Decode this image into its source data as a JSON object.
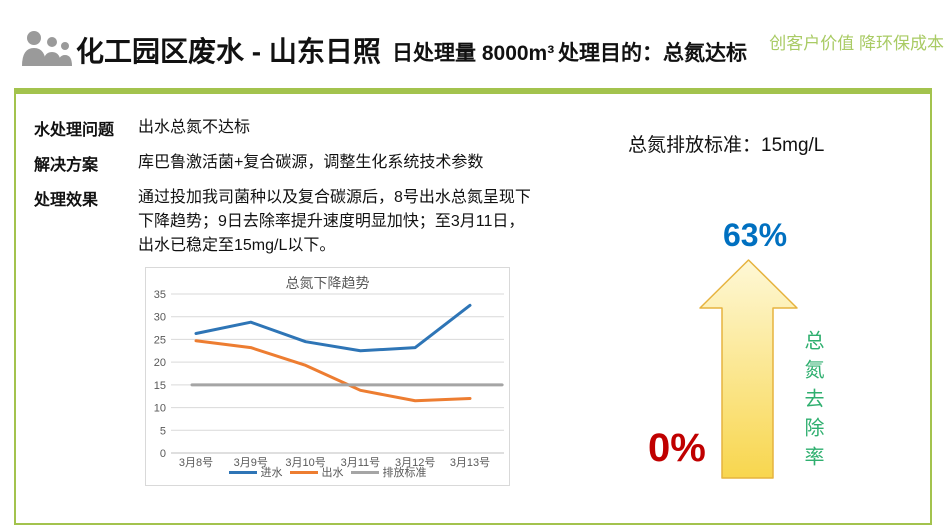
{
  "colors": {
    "panel_border_green": "#A3C34D",
    "slogan_green": "#A9CB64",
    "percent_top_blue": "#0070C0",
    "percent_bottom_red": "#C00000",
    "removal_label_green": "#2FAF6F",
    "arrow_fill_top": "#FEF8D6",
    "arrow_fill_bottom": "#F8D64E",
    "arrow_border": "#E6B33F",
    "icon_gray": "#9A9A9A"
  },
  "header": {
    "title": "化工园区废水 - 山东日照",
    "capacity": "日处理量 8000m³",
    "purpose": "处理目的：总氮达标",
    "slogan": "创客户价值 降环保成本"
  },
  "info": {
    "rows": [
      {
        "label": "水处理问题",
        "value": "出水总氮不达标"
      },
      {
        "label": "解决方案",
        "value": "库巴鲁激活菌+复合碳源，调整生化系统技术参数"
      },
      {
        "label": "处理效果",
        "value": "通过投加我司菌种以及复合碳源后，8号出水总氮呈现下\n下降趋势；9日去除率提升速度明显加快；至3月11日，\n出水已稳定至15mg/L以下。"
      }
    ],
    "standard_note": "总氮排放标准：15mg/L"
  },
  "chart_data": {
    "type": "line",
    "title": "总氮下降趋势",
    "categories": [
      "3月8号",
      "3月9号",
      "3月10号",
      "3月11号",
      "3月12号",
      "3月13号"
    ],
    "series": [
      {
        "name": "进水",
        "color": "#2E75B6",
        "values": [
          26.3,
          28.8,
          24.5,
          22.5,
          23.2,
          32.5
        ]
      },
      {
        "name": "出水",
        "color": "#ED7D31",
        "values": [
          24.7,
          23.2,
          19.3,
          13.8,
          11.5,
          12.0
        ]
      },
      {
        "name": "排放标准",
        "color": "#A5A5A5",
        "values": [
          15,
          15,
          15,
          15,
          15,
          15
        ],
        "extend": true
      }
    ],
    "ylim": [
      0,
      35
    ],
    "ytick_step": 5,
    "grid": true,
    "legend_position": "bottom",
    "xlabel": "",
    "ylabel": ""
  },
  "infographic": {
    "top_percent": "63%",
    "bottom_percent": "0%",
    "vertical_label": "总氮去除率",
    "arrow_direction": "up"
  }
}
